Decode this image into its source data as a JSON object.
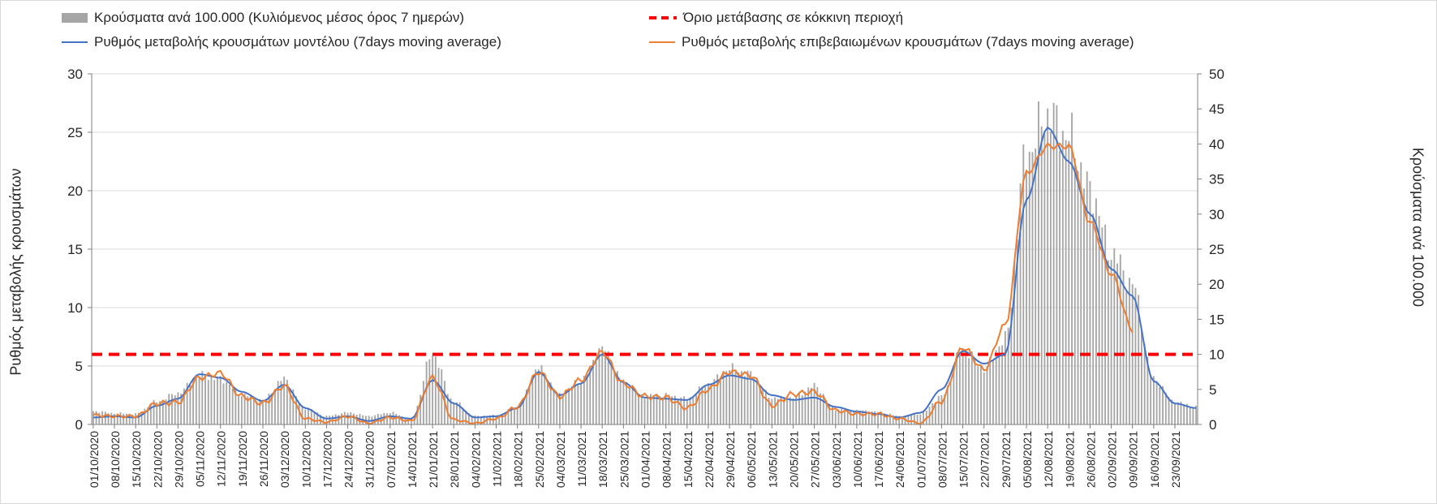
{
  "chart_data": {
    "type": "bar+line",
    "legend": {
      "bars_label": "Κρούσματα ανά 100.000 (Κυλιόμενος μέσος όρος 7 ημερών)",
      "threshold_label": "Όριο μετάβασης σε κόκκινη περιοχή",
      "model_label": "Ρυθμός μεταβολής κρουσμάτων μοντέλου (7days moving average)",
      "confirmed_label": "Ρυθμός μεταβολής επιβεβαιωμένων κρουσμάτων (7days moving average)"
    },
    "y_left_title": "Ρυθμός μεταβολής κρουσμάτων",
    "y_right_title": "Κρούσματα ανά 100.000",
    "y_left_range": [
      0,
      30
    ],
    "y_left_ticks": [
      0,
      5,
      10,
      15,
      20,
      25,
      30
    ],
    "y_right_range": [
      0,
      50
    ],
    "y_right_ticks": [
      0,
      5,
      10,
      15,
      20,
      25,
      30,
      35,
      40,
      45,
      50
    ],
    "grid": true,
    "legend_position": "top",
    "threshold_value": 6,
    "x_start_date": "2020-10-01",
    "x_end_date": "2021-09-30",
    "x_tick_labels": [
      "01/10/2020",
      "08/10/2020",
      "15/10/2020",
      "22/10/2020",
      "29/10/2020",
      "05/11/2020",
      "12/11/2020",
      "19/11/2020",
      "26/11/2020",
      "03/12/2020",
      "10/12/2020",
      "17/12/2020",
      "24/12/2020",
      "31/12/2020",
      "07/01/2021",
      "14/01/2021",
      "21/01/2021",
      "28/01/2021",
      "04/02/2021",
      "11/02/2021",
      "18/02/2021",
      "25/02/2021",
      "04/03/2021",
      "11/03/2021",
      "18/03/2021",
      "25/03/2021",
      "01/04/2021",
      "08/04/2021",
      "15/04/2021",
      "22/04/2021",
      "29/04/2021",
      "06/05/2021",
      "13/05/2021",
      "20/05/2021",
      "27/05/2021",
      "03/06/2021",
      "10/06/2021",
      "17/06/2021",
      "24/06/2021",
      "01/07/2021",
      "08/07/2021",
      "15/07/2021",
      "22/07/2021",
      "29/07/2021",
      "05/08/2021",
      "12/08/2021",
      "19/08/2021",
      "26/08/2021",
      "02/09/2021",
      "09/09/2021",
      "16/09/2021",
      "23/09/2021"
    ],
    "model_keypoints": [
      [
        "01/10/2020",
        0.6
      ],
      [
        "08/10/2020",
        0.7
      ],
      [
        "15/10/2020",
        0.6
      ],
      [
        "22/10/2020",
        1.6
      ],
      [
        "29/10/2020",
        2.2
      ],
      [
        "05/11/2020",
        4.3
      ],
      [
        "12/11/2020",
        4.0
      ],
      [
        "19/11/2020",
        2.8
      ],
      [
        "26/11/2020",
        2.0
      ],
      [
        "03/12/2020",
        3.4
      ],
      [
        "10/12/2020",
        1.4
      ],
      [
        "17/12/2020",
        0.5
      ],
      [
        "24/12/2020",
        0.7
      ],
      [
        "31/12/2020",
        0.3
      ],
      [
        "07/01/2021",
        0.7
      ],
      [
        "14/01/2021",
        0.5
      ],
      [
        "21/01/2021",
        3.8
      ],
      [
        "28/01/2021",
        1.8
      ],
      [
        "04/02/2021",
        0.6
      ],
      [
        "11/02/2021",
        0.7
      ],
      [
        "18/02/2021",
        1.4
      ],
      [
        "25/02/2021",
        4.5
      ],
      [
        "04/03/2021",
        2.5
      ],
      [
        "11/03/2021",
        3.5
      ],
      [
        "18/03/2021",
        6.0
      ],
      [
        "25/03/2021",
        3.6
      ],
      [
        "01/04/2021",
        2.3
      ],
      [
        "08/04/2021",
        2.2
      ],
      [
        "15/04/2021",
        2.1
      ],
      [
        "22/04/2021",
        3.4
      ],
      [
        "29/04/2021",
        4.2
      ],
      [
        "06/05/2021",
        3.9
      ],
      [
        "13/05/2021",
        2.5
      ],
      [
        "20/05/2021",
        2.1
      ],
      [
        "27/05/2021",
        2.3
      ],
      [
        "03/06/2021",
        1.5
      ],
      [
        "10/06/2021",
        1.1
      ],
      [
        "17/06/2021",
        0.9
      ],
      [
        "24/06/2021",
        0.6
      ],
      [
        "01/07/2021",
        1.0
      ],
      [
        "08/07/2021",
        3.0
      ],
      [
        "15/07/2021",
        6.3
      ],
      [
        "22/07/2021",
        5.2
      ],
      [
        "29/07/2021",
        6.0
      ],
      [
        "05/08/2021",
        19.2
      ],
      [
        "12/08/2021",
        25.4
      ],
      [
        "19/08/2021",
        22.5
      ],
      [
        "26/08/2021",
        18.0
      ],
      [
        "02/09/2021",
        13.3
      ],
      [
        "09/09/2021",
        11.0
      ],
      [
        "16/09/2021",
        3.7
      ],
      [
        "23/09/2021",
        1.8
      ],
      [
        "30/09/2021",
        1.4
      ]
    ],
    "confirmed_keypoints": [
      [
        "01/10/2020",
        0.8
      ],
      [
        "08/10/2020",
        0.7
      ],
      [
        "15/10/2020",
        0.7
      ],
      [
        "22/10/2020",
        1.8
      ],
      [
        "29/10/2020",
        1.9
      ],
      [
        "05/11/2020",
        4.0
      ],
      [
        "12/11/2020",
        4.4
      ],
      [
        "19/11/2020",
        2.4
      ],
      [
        "26/11/2020",
        1.8
      ],
      [
        "03/12/2020",
        3.3
      ],
      [
        "10/12/2020",
        0.5
      ],
      [
        "17/12/2020",
        0.2
      ],
      [
        "24/12/2020",
        0.7
      ],
      [
        "31/12/2020",
        0.1
      ],
      [
        "07/01/2021",
        0.6
      ],
      [
        "14/01/2021",
        0.3
      ],
      [
        "21/01/2021",
        4.0
      ],
      [
        "28/01/2021",
        0.4
      ],
      [
        "04/02/2021",
        0.1
      ],
      [
        "11/02/2021",
        0.5
      ],
      [
        "18/02/2021",
        1.5
      ],
      [
        "25/02/2021",
        4.5
      ],
      [
        "04/03/2021",
        2.4
      ],
      [
        "11/03/2021",
        3.8
      ],
      [
        "18/03/2021",
        6.2
      ],
      [
        "25/03/2021",
        3.5
      ],
      [
        "01/04/2021",
        2.4
      ],
      [
        "08/04/2021",
        2.3
      ],
      [
        "15/04/2021",
        1.4
      ],
      [
        "22/04/2021",
        3.0
      ],
      [
        "29/04/2021",
        4.5
      ],
      [
        "06/05/2021",
        4.2
      ],
      [
        "13/05/2021",
        1.6
      ],
      [
        "20/05/2021",
        2.6
      ],
      [
        "27/05/2021",
        2.8
      ],
      [
        "03/06/2021",
        1.2
      ],
      [
        "10/06/2021",
        0.9
      ],
      [
        "17/06/2021",
        0.9
      ],
      [
        "24/06/2021",
        0.5
      ],
      [
        "01/07/2021",
        0.1
      ],
      [
        "08/07/2021",
        2.0
      ],
      [
        "15/07/2021",
        6.6
      ],
      [
        "22/07/2021",
        4.7
      ],
      [
        "29/07/2021",
        8.5
      ],
      [
        "05/08/2021",
        21.5
      ],
      [
        "12/08/2021",
        23.8
      ],
      [
        "19/08/2021",
        23.8
      ],
      [
        "26/08/2021",
        17.3
      ],
      [
        "02/09/2021",
        12.9
      ],
      [
        "09/09/2021",
        8.1
      ]
    ],
    "cases_keypoints": [
      [
        "01/10/2020",
        1.9
      ],
      [
        "08/10/2020",
        1.6
      ],
      [
        "15/10/2020",
        1.5
      ],
      [
        "22/10/2020",
        3.3
      ],
      [
        "29/10/2020",
        4.5
      ],
      [
        "05/11/2020",
        7.0
      ],
      [
        "12/11/2020",
        6.5
      ],
      [
        "19/11/2020",
        4.3
      ],
      [
        "26/11/2020",
        3.5
      ],
      [
        "03/12/2020",
        6.5
      ],
      [
        "10/12/2020",
        2.3
      ],
      [
        "17/12/2020",
        1.2
      ],
      [
        "24/12/2020",
        1.7
      ],
      [
        "31/12/2020",
        1.2
      ],
      [
        "07/01/2021",
        1.7
      ],
      [
        "14/01/2021",
        0.8
      ],
      [
        "21/01/2021",
        10.0
      ],
      [
        "28/01/2021",
        3.3
      ],
      [
        "04/02/2021",
        1.2
      ],
      [
        "11/02/2021",
        1.3
      ],
      [
        "18/02/2021",
        2.5
      ],
      [
        "25/02/2021",
        8.0
      ],
      [
        "04/03/2021",
        4.3
      ],
      [
        "11/03/2021",
        6.3
      ],
      [
        "18/03/2021",
        10.8
      ],
      [
        "25/03/2021",
        6.2
      ],
      [
        "01/04/2021",
        4.0
      ],
      [
        "08/04/2021",
        4.2
      ],
      [
        "15/04/2021",
        3.7
      ],
      [
        "22/04/2021",
        5.8
      ],
      [
        "29/04/2021",
        8.0
      ],
      [
        "06/05/2021",
        7.2
      ],
      [
        "13/05/2021",
        3.8
      ],
      [
        "20/05/2021",
        3.8
      ],
      [
        "27/05/2021",
        5.5
      ],
      [
        "03/06/2021",
        2.2
      ],
      [
        "10/06/2021",
        2.0
      ],
      [
        "17/06/2021",
        1.8
      ],
      [
        "24/06/2021",
        1.2
      ],
      [
        "01/07/2021",
        1.5
      ],
      [
        "08/07/2021",
        4.0
      ],
      [
        "15/07/2021",
        10.8
      ],
      [
        "22/07/2021",
        8.0
      ],
      [
        "29/07/2021",
        12.2
      ],
      [
        "05/08/2021",
        38.5
      ],
      [
        "12/08/2021",
        44.2
      ],
      [
        "19/08/2021",
        41.0
      ],
      [
        "26/08/2021",
        33.5
      ],
      [
        "02/09/2021",
        24.5
      ],
      [
        "09/09/2021",
        20.0
      ],
      [
        "16/09/2021",
        6.5
      ],
      [
        "23/09/2021",
        3.2
      ],
      [
        "30/09/2021",
        2.5
      ]
    ],
    "colors": {
      "bars": "#a6a6a6",
      "model_line": "#4472c4",
      "confirmed_line": "#ed7d31",
      "threshold": "#ff0000",
      "grid": "#d9d9d9",
      "axis": "#7f7f7f",
      "text": "#262626"
    }
  }
}
